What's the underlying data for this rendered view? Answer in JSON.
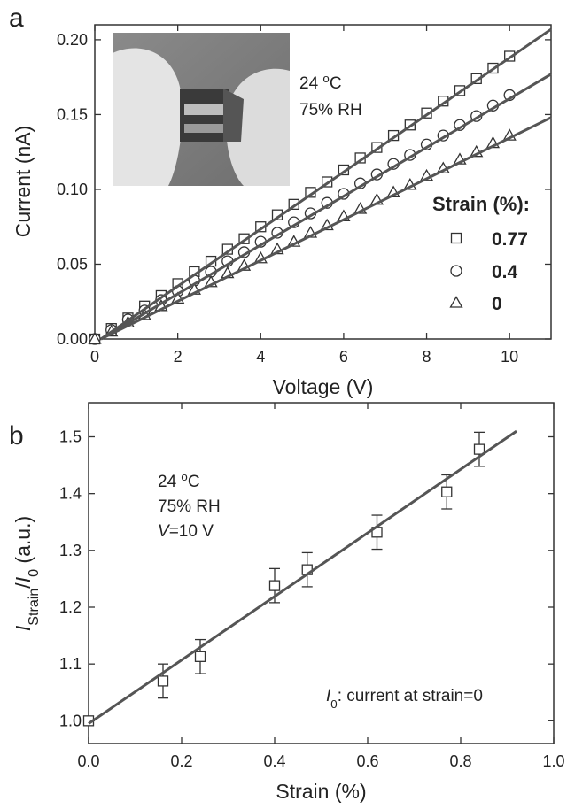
{
  "chart_data": [
    {
      "type": "scatter",
      "panel": "a",
      "xlabel": "Voltage (V)",
      "ylabel": "Current (nA)",
      "xlim": [
        0,
        11
      ],
      "ylim": [
        0,
        0.21
      ],
      "xticks": [
        0,
        2,
        4,
        6,
        8,
        10
      ],
      "yticks": [
        {
          "value": 0,
          "label": "0.00"
        },
        {
          "value": 0.05,
          "label": "0.05"
        },
        {
          "value": 0.1,
          "label": "0.10"
        },
        {
          "value": 0.15,
          "label": "0.15"
        },
        {
          "value": 0.2,
          "label": "0.20"
        }
      ],
      "legend_title": "Strain (%):",
      "series": [
        {
          "name": "0.77",
          "marker": "square",
          "color": "#333333",
          "x": [
            0,
            0.4,
            0.8,
            1.2,
            1.6,
            2,
            2.4,
            2.8,
            3.2,
            3.6,
            4,
            4.4,
            4.8,
            5.2,
            5.6,
            6,
            6.4,
            6.8,
            7.2,
            7.6,
            8,
            8.4,
            8.8,
            9.2,
            9.6,
            10
          ],
          "values": [
            0,
            0.007,
            0.014,
            0.022,
            0.029,
            0.037,
            0.045,
            0.052,
            0.06,
            0.067,
            0.075,
            0.083,
            0.09,
            0.098,
            0.105,
            0.113,
            0.121,
            0.128,
            0.136,
            0.143,
            0.151,
            0.159,
            0.166,
            0.174,
            0.181,
            0.189
          ]
        },
        {
          "name": "0.4",
          "marker": "circle",
          "color": "#333333",
          "x": [
            0,
            0.4,
            0.8,
            1.2,
            1.6,
            2,
            2.4,
            2.8,
            3.2,
            3.6,
            4,
            4.4,
            4.8,
            5.2,
            5.6,
            6,
            6.4,
            6.8,
            7.2,
            7.6,
            8,
            8.4,
            8.8,
            9.2,
            9.6,
            10
          ],
          "values": [
            0,
            0.006,
            0.013,
            0.019,
            0.026,
            0.032,
            0.039,
            0.045,
            0.052,
            0.058,
            0.065,
            0.071,
            0.078,
            0.084,
            0.091,
            0.097,
            0.104,
            0.11,
            0.117,
            0.123,
            0.13,
            0.136,
            0.143,
            0.149,
            0.156,
            0.163
          ]
        },
        {
          "name": "0",
          "marker": "triangle",
          "color": "#333333",
          "x": [
            0,
            0.4,
            0.8,
            1.2,
            1.6,
            2,
            2.4,
            2.8,
            3.2,
            3.6,
            4,
            4.4,
            4.8,
            5.2,
            5.6,
            6,
            6.4,
            6.8,
            7.2,
            7.6,
            8,
            8.4,
            8.8,
            9.2,
            9.6,
            10
          ],
          "values": [
            0,
            0.005,
            0.011,
            0.016,
            0.022,
            0.027,
            0.033,
            0.038,
            0.044,
            0.049,
            0.054,
            0.06,
            0.065,
            0.071,
            0.076,
            0.082,
            0.087,
            0.093,
            0.098,
            0.103,
            0.109,
            0.114,
            0.12,
            0.125,
            0.131,
            0.136
          ]
        },
        {
          "marker": "line",
          "color": "#555555",
          "x": [
            0.15,
            11
          ],
          "values": [
            0,
            0.207
          ]
        },
        {
          "marker": "line",
          "color": "#555555",
          "x": [
            0.15,
            11
          ],
          "values": [
            0,
            0.177
          ]
        },
        {
          "marker": "line",
          "color": "#555555",
          "x": [
            0.15,
            11
          ],
          "values": [
            0,
            0.148
          ]
        }
      ],
      "annotations": [
        [
          "24 ",
          "o",
          "C"
        ],
        [
          "75% RH"
        ]
      ]
    },
    {
      "type": "scatter",
      "panel": "b",
      "xlabel": "Strain (%)",
      "ylabel": [
        "I",
        "Strain",
        "/",
        "I",
        "0",
        " (a.u.)"
      ],
      "xlim": [
        0,
        1
      ],
      "ylim": [
        0.96,
        1.56
      ],
      "xticks": [
        {
          "value": 0,
          "label": "0.0"
        },
        {
          "value": 0.2,
          "label": "0.2"
        },
        {
          "value": 0.4,
          "label": "0.4"
        },
        {
          "value": 0.6,
          "label": "0.6"
        },
        {
          "value": 0.8,
          "label": "0.8"
        },
        {
          "value": 1,
          "label": "1.0"
        }
      ],
      "yticks": [
        {
          "value": 1,
          "label": "1.0"
        },
        {
          "value": 1.1,
          "label": "1.1"
        },
        {
          "value": 1.2,
          "label": "1.2"
        },
        {
          "value": 1.3,
          "label": "1.3"
        },
        {
          "value": 1.4,
          "label": "1.4"
        },
        {
          "value": 1.5,
          "label": "1.5"
        }
      ],
      "series": [
        {
          "marker": "square",
          "color": "#333333",
          "x": [
            0,
            0.16,
            0.24,
            0.4,
            0.47,
            0.62,
            0.77,
            0.84
          ],
          "values": [
            1.0,
            1.07,
            1.113,
            1.238,
            1.266,
            1.332,
            1.403,
            1.478
          ],
          "errors": [
            0,
            0.03,
            0.03,
            0.03,
            0.03,
            0.03,
            0.03,
            0.03
          ]
        },
        {
          "marker": "line",
          "color": "#555555",
          "x": [
            0,
            0.92
          ],
          "values": [
            0.995,
            1.51
          ]
        }
      ],
      "annotations": [
        [
          "24 ",
          "o",
          "C"
        ],
        [
          "75% RH"
        ],
        [
          "V",
          "=10 V"
        ],
        [
          "I",
          "0",
          ": current at strain=0"
        ]
      ]
    }
  ]
}
